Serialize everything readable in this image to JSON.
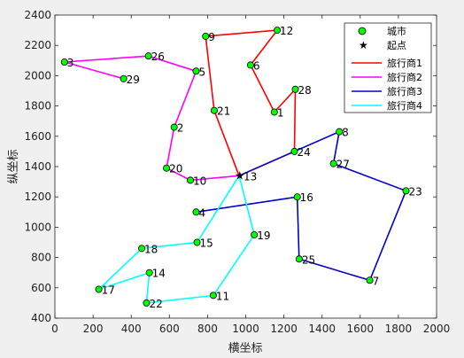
{
  "chart_data": {
    "type": "scatter",
    "xlabel": "横坐标",
    "ylabel": "纵坐标",
    "xlim": [
      0,
      2000
    ],
    "ylim": [
      400,
      2400
    ],
    "xticks": [
      0,
      200,
      400,
      600,
      800,
      1000,
      1200,
      1400,
      1600,
      1800,
      2000
    ],
    "yticks": [
      400,
      600,
      800,
      1000,
      1200,
      1400,
      1600,
      1800,
      2000,
      2200,
      2400
    ],
    "grid": false,
    "legend_position": "top-right",
    "legend": {
      "city": "城市",
      "depot": "起点"
    },
    "depot": {
      "label": "13",
      "x": 965,
      "y": 1340
    },
    "cities": [
      {
        "id": "1",
        "x": 1150,
        "y": 1760
      },
      {
        "id": "2",
        "x": 625,
        "y": 1660
      },
      {
        "id": "3",
        "x": 50,
        "y": 2090
      },
      {
        "id": "4",
        "x": 740,
        "y": 1100
      },
      {
        "id": "5",
        "x": 740,
        "y": 2030
      },
      {
        "id": "6",
        "x": 1025,
        "y": 2070
      },
      {
        "id": "7",
        "x": 1650,
        "y": 650
      },
      {
        "id": "8",
        "x": 1490,
        "y": 1630
      },
      {
        "id": "9",
        "x": 790,
        "y": 2260
      },
      {
        "id": "10",
        "x": 710,
        "y": 1310
      },
      {
        "id": "11",
        "x": 830,
        "y": 550
      },
      {
        "id": "12",
        "x": 1165,
        "y": 2300
      },
      {
        "id": "14",
        "x": 495,
        "y": 700
      },
      {
        "id": "15",
        "x": 745,
        "y": 900
      },
      {
        "id": "16",
        "x": 1270,
        "y": 1200
      },
      {
        "id": "17",
        "x": 230,
        "y": 590
      },
      {
        "id": "18",
        "x": 455,
        "y": 860
      },
      {
        "id": "19",
        "x": 1045,
        "y": 950
      },
      {
        "id": "20",
        "x": 585,
        "y": 1390
      },
      {
        "id": "21",
        "x": 835,
        "y": 1770
      },
      {
        "id": "22",
        "x": 480,
        "y": 500
      },
      {
        "id": "23",
        "x": 1840,
        "y": 1240
      },
      {
        "id": "24",
        "x": 1255,
        "y": 1500
      },
      {
        "id": "25",
        "x": 1280,
        "y": 790
      },
      {
        "id": "26",
        "x": 490,
        "y": 2130
      },
      {
        "id": "27",
        "x": 1460,
        "y": 1420
      },
      {
        "id": "28",
        "x": 1260,
        "y": 1910
      },
      {
        "id": "29",
        "x": 360,
        "y": 1980
      }
    ],
    "series": [
      {
        "name": "旅行商1",
        "color": "#ff0000",
        "route": [
          "13",
          "21",
          "9",
          "12",
          "6",
          "1",
          "28",
          "24",
          "13"
        ]
      },
      {
        "name": "旅行商2",
        "color": "#ff00ff",
        "route": [
          "13",
          "10",
          "20",
          "2",
          "5",
          "26",
          "3",
          "29"
        ]
      },
      {
        "name": "旅行商3",
        "color": "#0000cd",
        "route": [
          "13",
          "8",
          "27",
          "23",
          "7",
          "25",
          "16",
          "4"
        ]
      },
      {
        "name": "旅行商4",
        "color": "#00ffff",
        "route": [
          "13",
          "19",
          "11",
          "22",
          "14",
          "17",
          "18",
          "15",
          "13"
        ]
      }
    ],
    "marker_fill": "#00ff00",
    "marker_stroke": "#000000"
  }
}
